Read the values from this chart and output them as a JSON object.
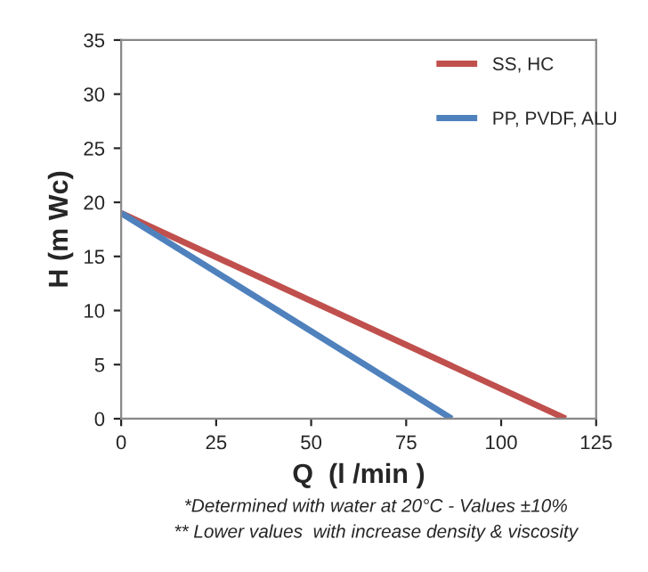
{
  "chart_data": {
    "type": "line",
    "xlabel": "Q  (l /min )",
    "ylabel": "H (m Wc)",
    "series": [
      {
        "name": "SS, HC",
        "color": "#c0504d",
        "x": [
          0,
          117
        ],
        "values": [
          19,
          0
        ]
      },
      {
        "name": "PP, PVDF, ALU",
        "color": "#4f81bd",
        "x": [
          0,
          87
        ],
        "values": [
          19,
          0
        ]
      }
    ],
    "xlim": [
      0,
      125
    ],
    "xticks": [
      0,
      25,
      50,
      75,
      100,
      125
    ],
    "ylim": [
      0,
      35
    ],
    "yticks": [
      0,
      5,
      10,
      15,
      20,
      25,
      30,
      35
    ],
    "grid": false,
    "legend": "top right",
    "marker": "none",
    "line_style": "solid",
    "annotations": [
      "*Determined with water at 20°C - Values ±10%",
      "** Lower values  with increase density & viscosity"
    ]
  }
}
